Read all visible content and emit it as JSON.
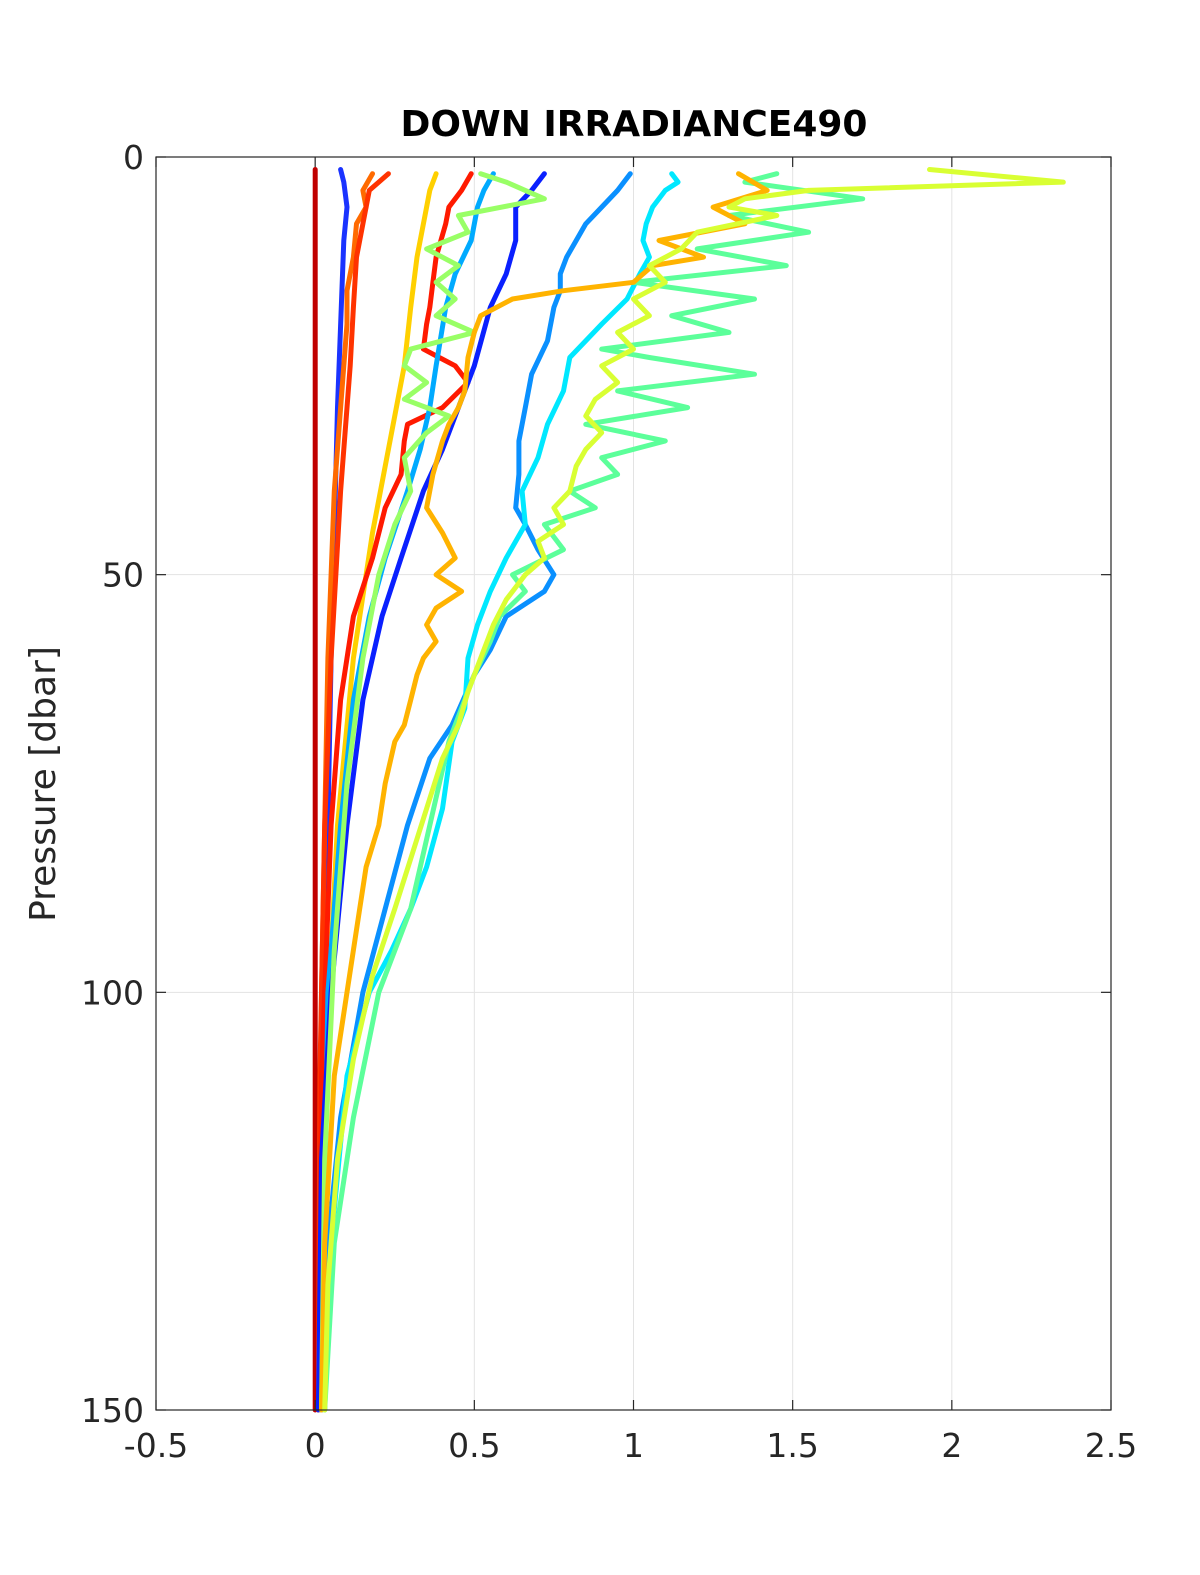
{
  "chart_data": {
    "type": "line",
    "title": "DOWN IRRADIANCE490",
    "xlabel": "",
    "ylabel": "Pressure [dbar]",
    "xlim": [
      -0.5,
      2.5
    ],
    "ylim": [
      0,
      150
    ],
    "y_reversed": true,
    "grid": true,
    "xticks": [
      -0.5,
      0,
      0.5,
      1,
      1.5,
      2,
      2.5
    ],
    "xtick_labels": [
      "-0.5",
      "0",
      "0.5",
      "1",
      "1.5",
      "2",
      "2.5"
    ],
    "yticks": [
      0,
      50,
      100,
      150
    ],
    "ytick_labels": [
      "0",
      "50",
      "100",
      "150"
    ],
    "series": [
      {
        "color": "#c00000",
        "points": [
          [
            0.0,
            1.5
          ],
          [
            0.0,
            20
          ],
          [
            0.0,
            50
          ],
          [
            0.0,
            100
          ],
          [
            0.0,
            150
          ]
        ]
      },
      {
        "color": "#1a33ff",
        "points": [
          [
            0.08,
            1.5
          ],
          [
            0.09,
            3
          ],
          [
            0.1,
            6
          ],
          [
            0.09,
            10
          ],
          [
            0.07,
            30
          ],
          [
            0.05,
            60
          ],
          [
            0.03,
            100
          ],
          [
            0.02,
            150
          ]
        ]
      },
      {
        "color": "#ff6a00",
        "points": [
          [
            0.18,
            2
          ],
          [
            0.15,
            4
          ],
          [
            0.16,
            6
          ],
          [
            0.13,
            8
          ],
          [
            0.12,
            12
          ],
          [
            0.1,
            16
          ],
          [
            0.1,
            20
          ],
          [
            0.08,
            30
          ],
          [
            0.06,
            40
          ],
          [
            0.04,
            60
          ],
          [
            0.02,
            100
          ],
          [
            0.01,
            150
          ]
        ]
      },
      {
        "color": "#ff3300",
        "points": [
          [
            0.23,
            2
          ],
          [
            0.2,
            3
          ],
          [
            0.17,
            4
          ],
          [
            0.15,
            8
          ],
          [
            0.14,
            10
          ],
          [
            0.13,
            12
          ],
          [
            0.12,
            18
          ],
          [
            0.11,
            25
          ],
          [
            0.08,
            40
          ],
          [
            0.05,
            60
          ],
          [
            0.03,
            80
          ],
          [
            0.015,
            110
          ],
          [
            0.01,
            150
          ]
        ]
      },
      {
        "color": "#ffd000",
        "points": [
          [
            0.38,
            2
          ],
          [
            0.36,
            4
          ],
          [
            0.35,
            6
          ],
          [
            0.32,
            12
          ],
          [
            0.3,
            18
          ],
          [
            0.28,
            25
          ],
          [
            0.23,
            35
          ],
          [
            0.18,
            45
          ],
          [
            0.12,
            60
          ],
          [
            0.07,
            80
          ],
          [
            0.03,
            110
          ],
          [
            0.01,
            150
          ]
        ]
      },
      {
        "color": "#ff1a00",
        "points": [
          [
            0.49,
            2
          ],
          [
            0.46,
            4
          ],
          [
            0.42,
            6
          ],
          [
            0.41,
            8
          ],
          [
            0.38,
            12
          ],
          [
            0.37,
            15
          ],
          [
            0.36,
            18
          ],
          [
            0.35,
            20
          ],
          [
            0.34,
            23
          ],
          [
            0.39,
            24
          ],
          [
            0.44,
            25
          ],
          [
            0.48,
            27
          ],
          [
            0.4,
            30
          ],
          [
            0.29,
            32
          ],
          [
            0.28,
            34
          ],
          [
            0.27,
            38
          ],
          [
            0.22,
            42
          ],
          [
            0.18,
            48
          ],
          [
            0.12,
            55
          ],
          [
            0.08,
            65
          ],
          [
            0.05,
            80
          ],
          [
            0.02,
            110
          ],
          [
            0.01,
            150
          ]
        ]
      },
      {
        "color": "#00aaff",
        "points": [
          [
            0.56,
            2
          ],
          [
            0.53,
            4
          ],
          [
            0.51,
            6
          ],
          [
            0.49,
            10
          ],
          [
            0.44,
            14
          ],
          [
            0.41,
            18
          ],
          [
            0.38,
            25
          ],
          [
            0.36,
            30
          ],
          [
            0.33,
            35
          ],
          [
            0.29,
            40
          ],
          [
            0.22,
            48
          ],
          [
            0.17,
            55
          ],
          [
            0.12,
            65
          ],
          [
            0.08,
            80
          ],
          [
            0.04,
            100
          ],
          [
            0.02,
            150
          ]
        ]
      },
      {
        "color": "#0a20ff",
        "points": [
          [
            0.72,
            2
          ],
          [
            0.68,
            4
          ],
          [
            0.63,
            6
          ],
          [
            0.63,
            10
          ],
          [
            0.6,
            14
          ],
          [
            0.55,
            18
          ],
          [
            0.5,
            25
          ],
          [
            0.45,
            30
          ],
          [
            0.4,
            35
          ],
          [
            0.34,
            40
          ],
          [
            0.27,
            48
          ],
          [
            0.21,
            55
          ],
          [
            0.15,
            65
          ],
          [
            0.1,
            80
          ],
          [
            0.05,
            100
          ],
          [
            0.02,
            120
          ],
          [
            0.01,
            150
          ]
        ]
      },
      {
        "color": "#0a90ff",
        "points": [
          [
            0.99,
            2
          ],
          [
            0.95,
            4
          ],
          [
            0.9,
            6
          ],
          [
            0.85,
            8
          ],
          [
            0.82,
            10
          ],
          [
            0.79,
            12
          ],
          [
            0.77,
            14
          ],
          [
            0.77,
            16
          ],
          [
            0.75,
            18
          ],
          [
            0.73,
            22
          ],
          [
            0.68,
            26
          ],
          [
            0.66,
            30
          ],
          [
            0.64,
            34
          ],
          [
            0.64,
            38
          ],
          [
            0.63,
            42
          ],
          [
            0.66,
            44
          ],
          [
            0.7,
            47
          ],
          [
            0.75,
            50
          ],
          [
            0.72,
            52
          ],
          [
            0.6,
            55
          ],
          [
            0.55,
            59
          ],
          [
            0.5,
            62
          ],
          [
            0.43,
            68
          ],
          [
            0.36,
            72
          ],
          [
            0.29,
            80
          ],
          [
            0.22,
            90
          ],
          [
            0.15,
            100
          ],
          [
            0.08,
            115
          ],
          [
            0.04,
            130
          ],
          [
            0.02,
            150
          ]
        ]
      },
      {
        "color": "#00e8ff",
        "points": [
          [
            1.12,
            2
          ],
          [
            1.14,
            3
          ],
          [
            1.1,
            4
          ],
          [
            1.06,
            6
          ],
          [
            1.04,
            8
          ],
          [
            1.03,
            10
          ],
          [
            1.05,
            12
          ],
          [
            1.02,
            14
          ],
          [
            0.98,
            17
          ],
          [
            0.9,
            20
          ],
          [
            0.8,
            24
          ],
          [
            0.78,
            28
          ],
          [
            0.73,
            32
          ],
          [
            0.7,
            36
          ],
          [
            0.65,
            40
          ],
          [
            0.66,
            44
          ],
          [
            0.6,
            48
          ],
          [
            0.55,
            52
          ],
          [
            0.51,
            56
          ],
          [
            0.48,
            60
          ],
          [
            0.47,
            66
          ],
          [
            0.43,
            70
          ],
          [
            0.4,
            78
          ],
          [
            0.35,
            85
          ],
          [
            0.3,
            90
          ],
          [
            0.24,
            95
          ],
          [
            0.17,
            100
          ],
          [
            0.1,
            110
          ],
          [
            0.05,
            130
          ],
          [
            0.03,
            150
          ]
        ]
      },
      {
        "color": "#5cff9a",
        "points": [
          [
            1.45,
            2
          ],
          [
            1.35,
            3
          ],
          [
            1.72,
            5
          ],
          [
            1.3,
            7
          ],
          [
            1.55,
            9
          ],
          [
            1.2,
            11
          ],
          [
            1.48,
            13
          ],
          [
            1.0,
            15
          ],
          [
            1.38,
            17
          ],
          [
            1.12,
            19
          ],
          [
            1.3,
            21
          ],
          [
            0.9,
            23
          ],
          [
            1.05,
            24
          ],
          [
            1.38,
            26
          ],
          [
            0.95,
            28
          ],
          [
            1.17,
            30
          ],
          [
            0.85,
            32
          ],
          [
            1.1,
            34
          ],
          [
            0.9,
            36
          ],
          [
            0.95,
            38
          ],
          [
            0.8,
            40
          ],
          [
            0.88,
            42
          ],
          [
            0.72,
            44
          ],
          [
            0.78,
            47
          ],
          [
            0.62,
            50
          ],
          [
            0.66,
            52
          ],
          [
            0.58,
            55
          ],
          [
            0.55,
            58
          ],
          [
            0.5,
            62
          ],
          [
            0.46,
            66
          ],
          [
            0.42,
            70
          ],
          [
            0.36,
            80
          ],
          [
            0.3,
            90
          ],
          [
            0.2,
            100
          ],
          [
            0.12,
            115
          ],
          [
            0.06,
            130
          ],
          [
            0.03,
            150
          ]
        ]
      },
      {
        "color": "#99ff66",
        "points": [
          [
            0.52,
            2
          ],
          [
            0.6,
            3
          ],
          [
            0.72,
            5
          ],
          [
            0.45,
            7
          ],
          [
            0.48,
            9
          ],
          [
            0.35,
            11
          ],
          [
            0.45,
            13
          ],
          [
            0.38,
            15
          ],
          [
            0.44,
            17
          ],
          [
            0.38,
            19
          ],
          [
            0.5,
            21
          ],
          [
            0.3,
            23
          ],
          [
            0.28,
            25
          ],
          [
            0.35,
            27
          ],
          [
            0.28,
            29
          ],
          [
            0.42,
            31
          ],
          [
            0.35,
            33
          ],
          [
            0.28,
            36
          ],
          [
            0.3,
            40
          ],
          [
            0.25,
            44
          ],
          [
            0.2,
            50
          ],
          [
            0.15,
            60
          ],
          [
            0.1,
            75
          ],
          [
            0.06,
            95
          ],
          [
            0.03,
            120
          ],
          [
            0.02,
            150
          ]
        ]
      },
      {
        "color": "#ffb300",
        "points": [
          [
            1.33,
            2
          ],
          [
            1.42,
            4
          ],
          [
            1.25,
            6
          ],
          [
            1.35,
            8
          ],
          [
            1.08,
            10
          ],
          [
            1.22,
            12
          ],
          [
            1.06,
            13
          ],
          [
            1.0,
            15
          ],
          [
            0.78,
            16
          ],
          [
            0.62,
            17
          ],
          [
            0.52,
            19
          ],
          [
            0.5,
            21
          ],
          [
            0.48,
            24
          ],
          [
            0.47,
            28
          ],
          [
            0.45,
            30
          ],
          [
            0.42,
            32
          ],
          [
            0.4,
            34
          ],
          [
            0.37,
            38
          ],
          [
            0.35,
            42
          ],
          [
            0.4,
            45
          ],
          [
            0.44,
            48
          ],
          [
            0.38,
            50
          ],
          [
            0.46,
            52
          ],
          [
            0.38,
            54
          ],
          [
            0.35,
            56
          ],
          [
            0.38,
            58
          ],
          [
            0.34,
            60
          ],
          [
            0.32,
            62
          ],
          [
            0.3,
            65
          ],
          [
            0.28,
            68
          ],
          [
            0.25,
            70
          ],
          [
            0.22,
            75
          ],
          [
            0.2,
            80
          ],
          [
            0.16,
            85
          ],
          [
            0.14,
            90
          ],
          [
            0.1,
            100
          ],
          [
            0.06,
            110
          ],
          [
            0.03,
            130
          ],
          [
            0.02,
            150
          ]
        ]
      },
      {
        "color": "#d9ff33",
        "points": [
          [
            1.93,
            1.5
          ],
          [
            2.35,
            3
          ],
          [
            1.55,
            4
          ],
          [
            1.35,
            5
          ],
          [
            1.3,
            6
          ],
          [
            1.45,
            7
          ],
          [
            1.2,
            9
          ],
          [
            1.15,
            11
          ],
          [
            1.05,
            13
          ],
          [
            1.1,
            15
          ],
          [
            1.0,
            17
          ],
          [
            1.05,
            19
          ],
          [
            0.95,
            21
          ],
          [
            1.0,
            23
          ],
          [
            0.9,
            25
          ],
          [
            0.95,
            27
          ],
          [
            0.88,
            29
          ],
          [
            0.85,
            31
          ],
          [
            0.9,
            33
          ],
          [
            0.85,
            35
          ],
          [
            0.82,
            37
          ],
          [
            0.8,
            40
          ],
          [
            0.75,
            42
          ],
          [
            0.78,
            44
          ],
          [
            0.7,
            46
          ],
          [
            0.72,
            48
          ],
          [
            0.66,
            50
          ],
          [
            0.6,
            53
          ],
          [
            0.56,
            56
          ],
          [
            0.52,
            60
          ],
          [
            0.48,
            64
          ],
          [
            0.45,
            68
          ],
          [
            0.4,
            72
          ],
          [
            0.35,
            78
          ],
          [
            0.3,
            84
          ],
          [
            0.25,
            90
          ],
          [
            0.18,
            98
          ],
          [
            0.12,
            108
          ],
          [
            0.07,
            120
          ],
          [
            0.04,
            135
          ],
          [
            0.03,
            150
          ]
        ]
      }
    ]
  }
}
